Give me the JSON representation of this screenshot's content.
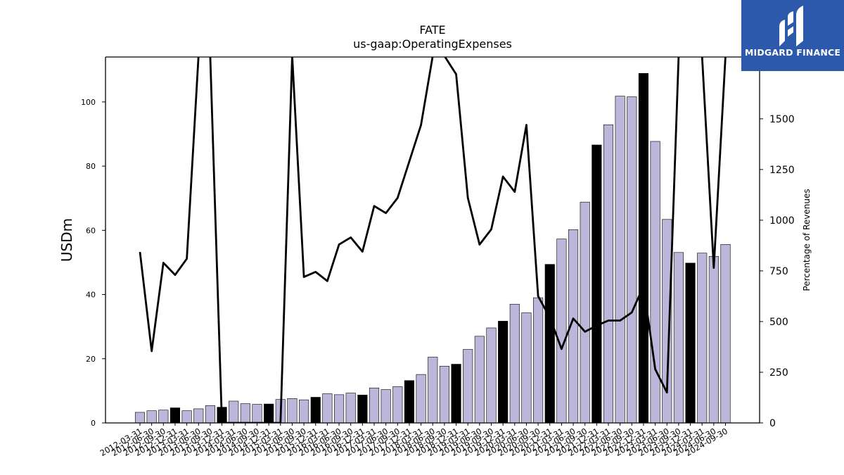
{
  "chart_data": {
    "type": "bar",
    "title": "FATE",
    "subtitle": "us-gaap:OperatingExpenses",
    "ylabel": "USDm",
    "y2label": "Percentage of Revenues",
    "ylim": [
      0,
      114
    ],
    "y2lim": [
      0,
      1805
    ],
    "yticks": [
      0,
      20,
      40,
      60,
      80,
      100
    ],
    "y2ticks": [
      0,
      250,
      500,
      750,
      1000,
      1250,
      1500
    ],
    "categories": [
      "2012-03-31",
      "2012-06-30",
      "2012-09-30",
      "2012-12-31",
      "2013-03-31",
      "2013-06-30",
      "2013-09-30",
      "2013-12-31",
      "2014-03-31",
      "2014-06-30",
      "2014-09-30",
      "2014-12-31",
      "2015-03-31",
      "2015-06-30",
      "2015-09-30",
      "2015-12-31",
      "2016-03-31",
      "2016-06-30",
      "2016-09-30",
      "2016-12-31",
      "2017-03-31",
      "2017-06-30",
      "2017-09-30",
      "2017-12-31",
      "2018-03-31",
      "2018-06-30",
      "2018-09-30",
      "2018-12-31",
      "2019-03-31",
      "2019-06-30",
      "2019-09-30",
      "2019-12-31",
      "2020-03-31",
      "2020-06-30",
      "2020-09-30",
      "2020-12-31",
      "2021-03-31",
      "2021-06-30",
      "2021-09-30",
      "2021-12-31",
      "2022-03-31",
      "2022-06-30",
      "2022-09-30",
      "2022-12-31",
      "2023-03-31",
      "2023-06-30",
      "2023-09-30",
      "2023-12-31",
      "2024-03-31",
      "2024-06-30",
      "2024-09-30"
    ],
    "series": [
      {
        "type": "bar",
        "values": [
          3.3,
          3.8,
          4.0,
          4.7,
          3.8,
          4.4,
          5.4,
          4.9,
          6.8,
          6.0,
          5.8,
          5.9,
          7.3,
          7.6,
          7.2,
          8.0,
          9.1,
          8.8,
          9.3,
          8.7,
          10.9,
          10.4,
          11.3,
          13.2,
          15.1,
          20.5,
          17.7,
          18.3,
          22.9,
          27.0,
          29.6,
          31.7,
          37.0,
          34.3,
          39.0,
          49.4,
          57.3,
          60.2,
          68.8,
          86.6,
          92.9,
          101.8,
          101.6,
          108.9,
          87.7,
          63.4,
          53.1,
          49.8,
          52.9,
          51.9,
          55.6
        ],
        "q4_color": "#000000",
        "color": "#bcb6da"
      },
      {
        "type": "line",
        "axis": "right",
        "color": "#000000",
        "values": [
          843,
          354,
          790,
          730,
          810,
          1810,
          1810,
          0,
          0,
          0,
          0,
          0,
          0,
          1810,
          720,
          745,
          700,
          880,
          915,
          845,
          1070,
          1035,
          1110,
          1290,
          1470,
          1810,
          1810,
          1720,
          1110,
          880,
          955,
          1215,
          1140,
          1470,
          625,
          520,
          365,
          515,
          450,
          480,
          505,
          505,
          545,
          675,
          265,
          150,
          1810,
          1810,
          1810,
          765,
          1810
        ]
      }
    ]
  },
  "logo": {
    "text": "MIDGARD FINANCE"
  }
}
